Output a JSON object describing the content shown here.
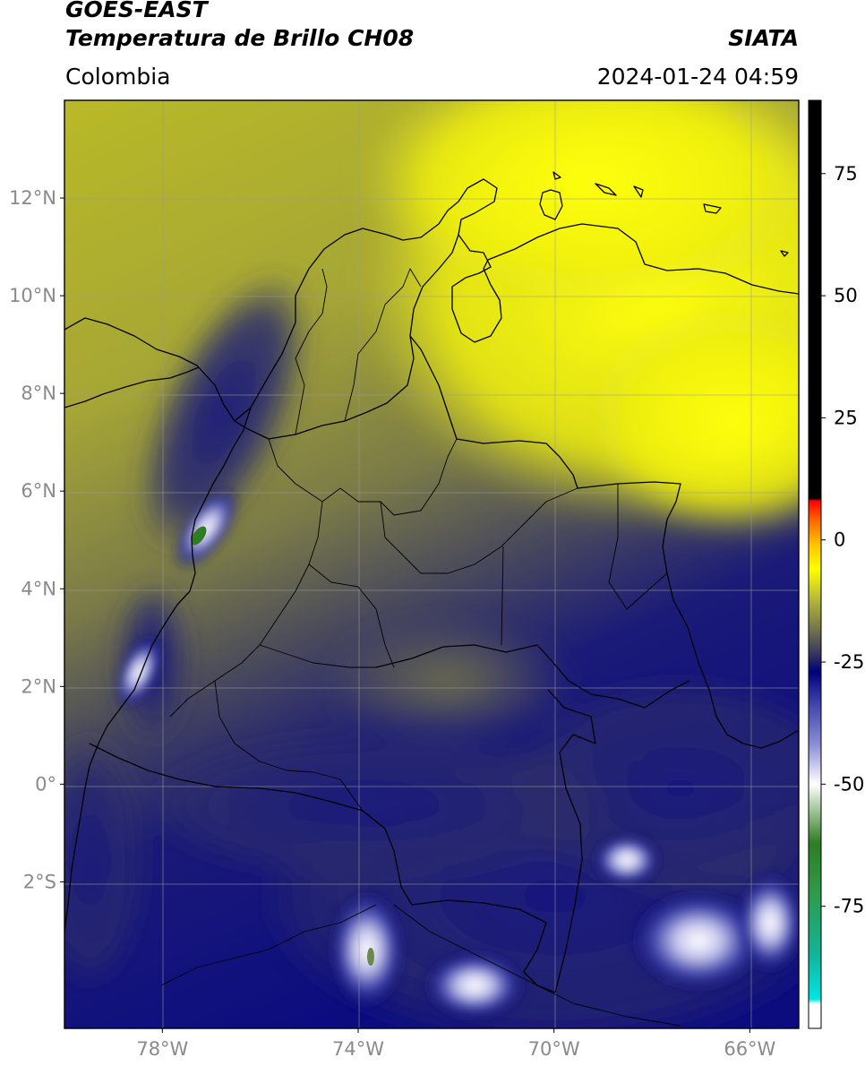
{
  "header": {
    "satellite": "GOES-EAST",
    "product": "Temperatura de Brillo CH08",
    "region": "Colombia",
    "agency": "SIATA",
    "datetime": "2024-01-24 04:59"
  },
  "map": {
    "lat_ticks": [
      {
        "value": 12,
        "label": "12°N"
      },
      {
        "value": 10,
        "label": "10°N"
      },
      {
        "value": 8,
        "label": "8°N"
      },
      {
        "value": 6,
        "label": "6°N"
      },
      {
        "value": 4,
        "label": "4°N"
      },
      {
        "value": 2,
        "label": "2°N"
      },
      {
        "value": 0,
        "label": "0°"
      },
      {
        "value": -2,
        "label": "2°S"
      }
    ],
    "lon_ticks": [
      {
        "value": -78,
        "label": "78°W"
      },
      {
        "value": -74,
        "label": "74°W"
      },
      {
        "value": -70,
        "label": "70°W"
      },
      {
        "value": -66,
        "label": "66°W"
      }
    ],
    "lon_range": [
      -80,
      -65
    ],
    "lat_range": [
      -5,
      14
    ]
  },
  "colorbar": {
    "range": [
      -100,
      90
    ],
    "ticks": [
      {
        "value": 75,
        "label": "75"
      },
      {
        "value": 50,
        "label": "50"
      },
      {
        "value": 25,
        "label": "25"
      },
      {
        "value": 0,
        "label": "0"
      },
      {
        "value": -25,
        "label": "-25"
      },
      {
        "value": -50,
        "label": "-50"
      },
      {
        "value": -75,
        "label": "-75"
      }
    ],
    "stops": [
      {
        "value": -100,
        "color": "#ffffff"
      },
      {
        "value": -95,
        "color": "#ffffff"
      },
      {
        "value": -94,
        "color": "#00e5e5"
      },
      {
        "value": -85,
        "color": "#11b59a"
      },
      {
        "value": -72,
        "color": "#2f9a4a"
      },
      {
        "value": -62,
        "color": "#2e7d23"
      },
      {
        "value": -55,
        "color": "#a8c8a0"
      },
      {
        "value": -50,
        "color": "#ffffff"
      },
      {
        "value": -42,
        "color": "#8c8fd6"
      },
      {
        "value": -33,
        "color": "#3a3fa8"
      },
      {
        "value": -27,
        "color": "#00007a"
      },
      {
        "value": -23,
        "color": "#3a3a5e"
      },
      {
        "value": -18,
        "color": "#77774a"
      },
      {
        "value": -12,
        "color": "#b9b93a"
      },
      {
        "value": -6,
        "color": "#ffff00"
      },
      {
        "value": -1,
        "color": "#ffc400"
      },
      {
        "value": 4,
        "color": "#ff6600"
      },
      {
        "value": 8,
        "color": "#ff0000"
      },
      {
        "value": 8.5,
        "color": "#000000"
      },
      {
        "value": 90,
        "color": "#000000"
      }
    ]
  }
}
